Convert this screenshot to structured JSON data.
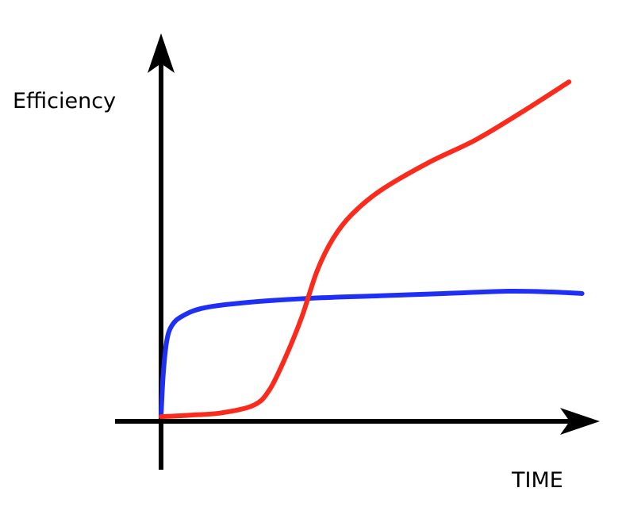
{
  "chart_data": {
    "type": "line",
    "xlabel": "TIME",
    "ylabel": "Efficiency",
    "xlim": [
      0,
      100
    ],
    "ylim": [
      0,
      100
    ],
    "series": [
      {
        "color": "#1f2ff5",
        "x": [
          0,
          0.5,
          1.3,
          2.5,
          5,
          10,
          20,
          35,
          50,
          65,
          80,
          90,
          97
        ],
        "values": [
          1,
          12,
          20.6,
          24.7,
          27.2,
          29.3,
          30.7,
          31.8,
          32.4,
          33,
          33.6,
          33.4,
          33
        ]
      },
      {
        "color": "#fa2a1c",
        "x": [
          0,
          6.8,
          14,
          21.4,
          25,
          28.7,
          32.4,
          36,
          39.7,
          44,
          50.6,
          61.6,
          72.6,
          83.5,
          94
        ],
        "values": [
          1,
          1.4,
          2,
          4,
          8,
          16.5,
          26.8,
          39,
          47.4,
          53.6,
          59.8,
          67,
          73,
          80.4,
          88
        ]
      }
    ]
  }
}
